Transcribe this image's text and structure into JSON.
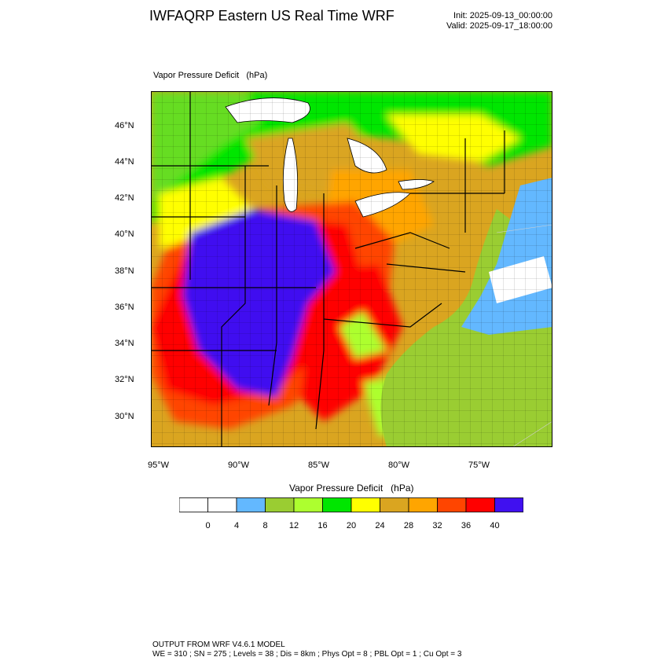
{
  "header": {
    "title": "IWFAQRP Eastern US Real Time WRF",
    "init": "Init: 2025-09-13_00:00:00",
    "valid": "Valid: 2025-09-17_18:00:00"
  },
  "field_label": "Vapor Pressure Deficit   (hPa)",
  "map": {
    "lat_labels": [
      "46°N",
      "44°N",
      "42°N",
      "40°N",
      "38°N",
      "36°N",
      "34°N",
      "32°N",
      "30°N"
    ],
    "lon_labels": [
      "95°W",
      "90°W",
      "85°W",
      "80°W",
      "75°W"
    ]
  },
  "colorbar": {
    "title": "Vapor Pressure Deficit   (hPa)",
    "ticks": [
      "0",
      "4",
      "8",
      "12",
      "16",
      "20",
      "24",
      "28",
      "32",
      "36",
      "40"
    ],
    "colors": [
      "#ffffff",
      "#ffffff",
      "#63b8ff",
      "#9acd32",
      "#adff2f",
      "#00e600",
      "#ffff00",
      "#daa520",
      "#ffa500",
      "#ff4500",
      "#ff0000",
      "#4010f0"
    ],
    "colors_meaning": {
      "ocean": "#63b8ff",
      "lake": "#ffffff",
      "land_low": "#9acd32"
    }
  },
  "footer": {
    "line1": "OUTPUT FROM WRF V4.6.1 MODEL",
    "line2": "WE = 310 ; SN = 275 ; Levels = 38 ; Dis = 8km ; Phys Opt = 8 ; PBL Opt = 1 ; Cu Opt = 3"
  }
}
